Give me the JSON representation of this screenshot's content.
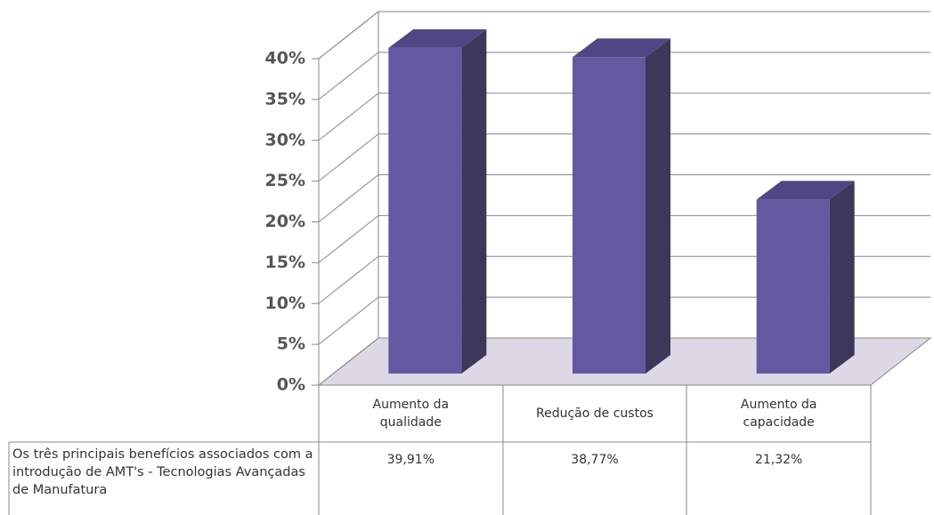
{
  "chart_data": {
    "type": "bar3d",
    "categories": [
      "Aumento da qualidade",
      "Redução de custos",
      "Aumento da capacidade"
    ],
    "series": [
      {
        "name": "Os três principais benefícios associados com a introdução de AMT's - Tecnologias Avançadas de Manufatura",
        "color": "#6459a0",
        "values": [
          39.91,
          38.77,
          21.32
        ],
        "value_labels": [
          "39,91%",
          "38,77%",
          "21,32%"
        ]
      }
    ],
    "ylim": [
      0,
      40
    ],
    "yticks": [
      {
        "value": 0,
        "label": "0%"
      },
      {
        "value": 5,
        "label": "5%"
      },
      {
        "value": 10,
        "label": "10%"
      },
      {
        "value": 15,
        "label": "15%"
      },
      {
        "value": 20,
        "label": "20%"
      },
      {
        "value": 25,
        "label": "25%"
      },
      {
        "value": 30,
        "label": "30%"
      },
      {
        "value": 35,
        "label": "35%"
      },
      {
        "value": 40,
        "label": "40%"
      }
    ],
    "grid": true,
    "data_table": true
  }
}
